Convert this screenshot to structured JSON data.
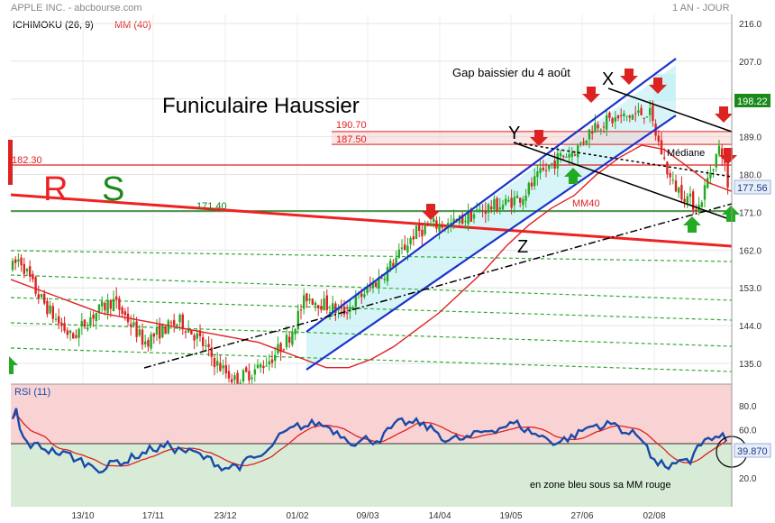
{
  "header": {
    "title": "APPLE INC. - abcbourse.com",
    "period": "1 AN - JOUR",
    "indicator": "ICHIMOKU (26, 9)",
    "ma_label": "MM (40)"
  },
  "chart_data": [
    {
      "type": "candlestick",
      "title": "APPLE INC. - abcbourse.com",
      "y_ticks": [
        216.0,
        207.0,
        198.0,
        189.0,
        180.0,
        171.0,
        162.0,
        153.0,
        144.0,
        135.0
      ],
      "ylim": [
        131.5,
        217.5
      ],
      "x_ticks": [
        "13/10",
        "17/11",
        "23/12",
        "01/02",
        "09/03",
        "14/04",
        "19/05",
        "27/06",
        "02/08"
      ],
      "series": [
        {
          "name": "MM40",
          "values": [
            155,
            153,
            151,
            149,
            147,
            146,
            145,
            144,
            143,
            142,
            141,
            140,
            138,
            136,
            134,
            134,
            136,
            139,
            143,
            147,
            152,
            157,
            163,
            168,
            172,
            175,
            180,
            184,
            187,
            186,
            182,
            178,
            176
          ]
        }
      ],
      "price_badges": [
        {
          "value": "198.22",
          "color": "#1a8a1a"
        },
        {
          "value": "177.56",
          "color": "#e8eef8",
          "text_color": "#1a3a8a"
        }
      ],
      "levels": [
        {
          "label": "190.70",
          "value": 190.7,
          "color": "#dd2222"
        },
        {
          "label": "187.50",
          "value": 187.5,
          "color": "#dd2222"
        },
        {
          "label": "182.30",
          "value": 182.3,
          "color": "#dd2222"
        },
        {
          "label": "171.40",
          "value": 171.4,
          "color": "#1a8a1a"
        }
      ],
      "annotations": {
        "title": "Funiculaire Haussier",
        "gap": "Gap baissier du 4 août",
        "x": "X",
        "y": "Y",
        "z": "Z",
        "r": "R",
        "s": "S",
        "mediane": "Médiane",
        "mm40": "MM40"
      }
    },
    {
      "type": "line",
      "title": "RSI (11)",
      "y_ticks": [
        80.0,
        60.0,
        40.0,
        20.0
      ],
      "last_value": "39.870",
      "note": "en zone bleu sous sa MM rouge"
    }
  ]
}
